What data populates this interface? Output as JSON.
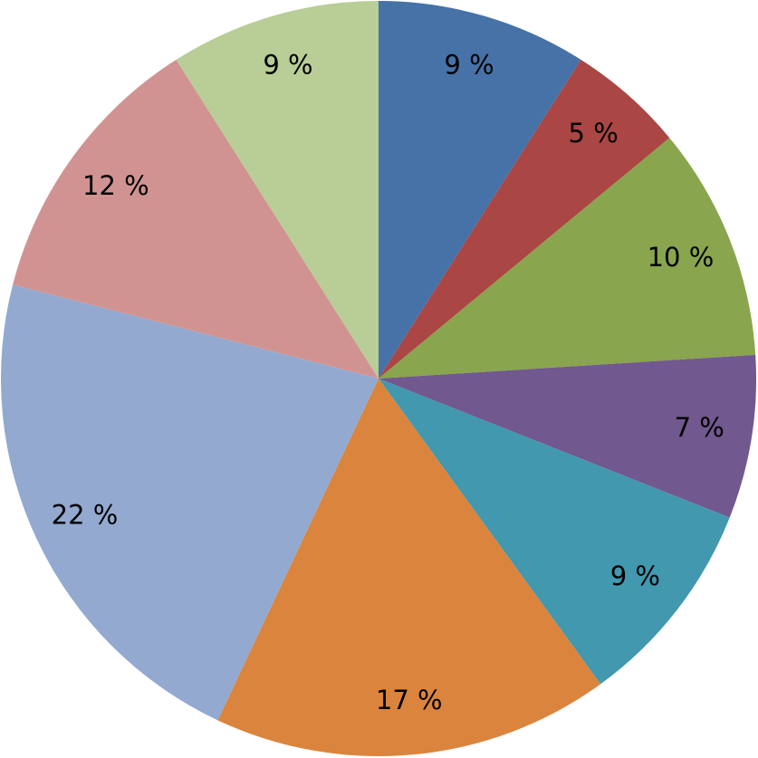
{
  "chart_data": {
    "type": "pie",
    "values": [
      9,
      5,
      10,
      7,
      9,
      17,
      22,
      12,
      9
    ],
    "value_labels": [
      "9 %",
      "5 %",
      "10 %",
      "7 %",
      "9 %",
      "17 %",
      "22 %",
      "12 %",
      "9 %"
    ],
    "colors": [
      "#4672a8",
      "#aa4644",
      "#89a54e",
      "#71588f",
      "#4198af",
      "#db843d",
      "#93a9cf",
      "#d19392",
      "#b9cd96"
    ]
  }
}
